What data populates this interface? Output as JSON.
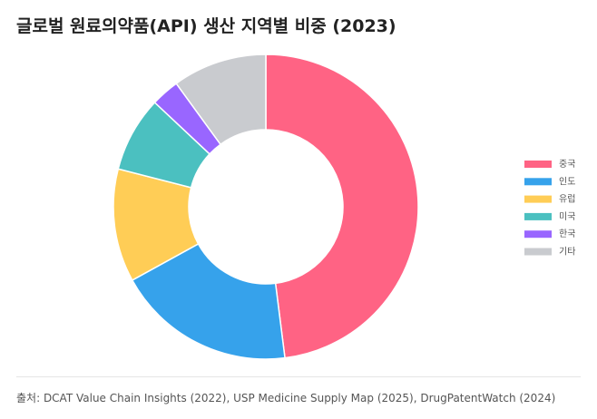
{
  "chart_data": {
    "type": "doughnut",
    "title": "글로벌 원료의약품(API) 생산 지역별 비중 (2023)",
    "source": "출처: DCAT Value Chain Insights (2022), USP Medicine Supply Map (2025), DrugPatentWatch (2024)",
    "categories": [
      "중국",
      "인도",
      "유럽",
      "미국",
      "한국",
      "기타"
    ],
    "values": [
      48,
      19,
      12,
      8,
      3,
      10
    ],
    "colors": [
      "#ff6384",
      "#36a2eb",
      "#ffcd56",
      "#4bc0c0",
      "#9966ff",
      "#c9cbcf"
    ],
    "legend": "right"
  }
}
